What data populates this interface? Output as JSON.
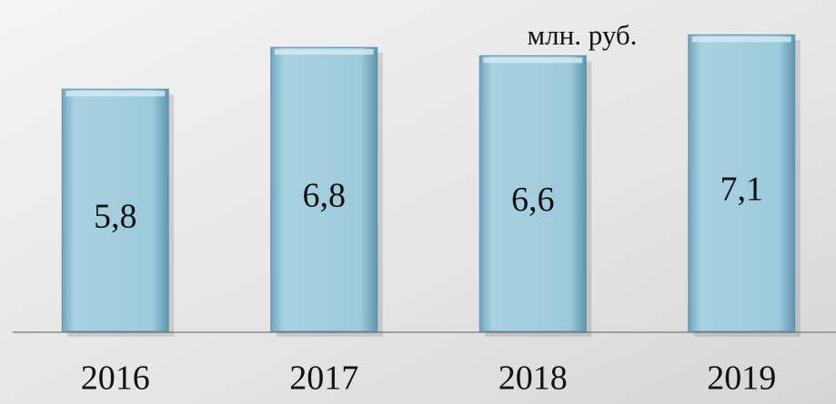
{
  "chart_data": {
    "type": "bar",
    "unit": "млн. руб.",
    "categories": [
      "2016",
      "2017",
      "2018",
      "2019"
    ],
    "values": [
      5.8,
      6.8,
      6.6,
      7.1
    ],
    "value_labels": [
      "5,8",
      "6,8",
      "6,6",
      "7,1"
    ],
    "color": "#8fc0d3",
    "ylim": [
      0,
      7.5
    ]
  }
}
